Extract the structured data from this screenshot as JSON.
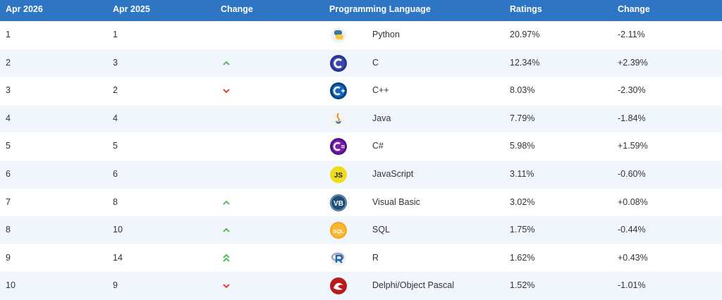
{
  "table": {
    "header": [
      "Apr 2026",
      "Apr 2025",
      "Change",
      "Programming Language",
      "Ratings",
      "Change"
    ],
    "rows": [
      {
        "now": "1",
        "prev": "1",
        "language": "Python",
        "rating": "20.97%",
        "change": "-2.11%"
      },
      {
        "now": "2",
        "prev": "3",
        "language": "C",
        "rating": "12.34%",
        "change": "+2.39%"
      },
      {
        "now": "3",
        "prev": "2",
        "language": "C++",
        "rating": "8.03%",
        "change": "-2.30%"
      },
      {
        "now": "4",
        "prev": "4",
        "language": "Java",
        "rating": "7.79%",
        "change": "-1.84%"
      },
      {
        "now": "5",
        "prev": "5",
        "language": "C#",
        "rating": "5.98%",
        "change": "+1.59%"
      },
      {
        "now": "6",
        "prev": "6",
        "language": "JavaScript",
        "rating": "3.11%",
        "change": "-0.60%",
        "logo": "JS"
      },
      {
        "now": "7",
        "prev": "8",
        "language": "Visual Basic",
        "rating": "3.02%",
        "change": "+0.08%",
        "logo": "VB"
      },
      {
        "now": "8",
        "prev": "10",
        "language": "SQL",
        "rating": "1.75%",
        "change": "-0.44%",
        "logo": "SQL"
      },
      {
        "now": "9",
        "prev": "14",
        "language": "R",
        "rating": "1.62%",
        "change": "+0.43%"
      },
      {
        "now": "10",
        "prev": "9",
        "language": "Delphi/Object Pascal",
        "rating": "1.52%",
        "change": "-1.01%"
      }
    ]
  }
}
